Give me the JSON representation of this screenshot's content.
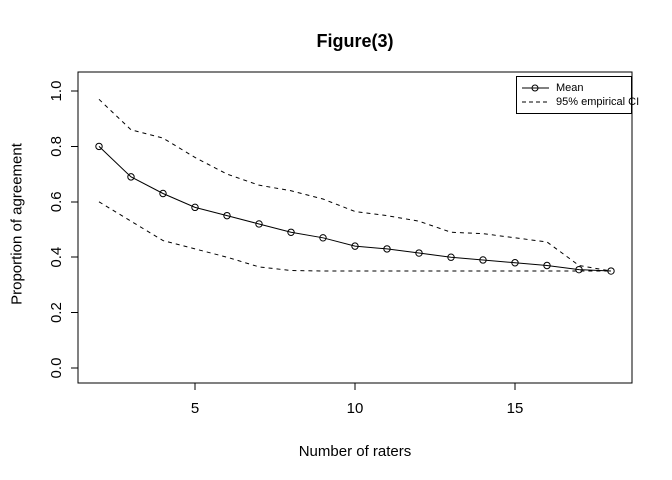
{
  "figure": {
    "title": "Figure(3)"
  },
  "chart_data": {
    "type": "line",
    "title": "Figure(3)",
    "xlabel": "Number of raters",
    "ylabel": "Proportion of agreement",
    "x": [
      2,
      3,
      4,
      5,
      6,
      7,
      8,
      9,
      10,
      11,
      12,
      13,
      14,
      15,
      16,
      17,
      18
    ],
    "series": [
      {
        "name": "Mean",
        "line": "solid",
        "marker": "open-circle",
        "values": [
          0.8,
          0.69,
          0.63,
          0.58,
          0.55,
          0.52,
          0.49,
          0.47,
          0.44,
          0.43,
          0.415,
          0.4,
          0.39,
          0.38,
          0.37,
          0.355,
          0.35
        ]
      },
      {
        "name": "95% empirical CI (upper)",
        "line": "dashed",
        "marker": "none",
        "values": [
          0.97,
          0.86,
          0.83,
          0.76,
          0.7,
          0.66,
          0.64,
          0.61,
          0.565,
          0.55,
          0.53,
          0.49,
          0.485,
          0.47,
          0.455,
          0.37,
          0.35
        ]
      },
      {
        "name": "95% empirical CI (lower)",
        "line": "dashed",
        "marker": "none",
        "values": [
          0.6,
          0.53,
          0.46,
          0.43,
          0.4,
          0.365,
          0.352,
          0.35,
          0.35,
          0.35,
          0.35,
          0.35,
          0.35,
          0.35,
          0.35,
          0.35,
          0.35
        ]
      }
    ],
    "xlim": [
      2,
      18
    ],
    "ylim": [
      0.0,
      1.0
    ],
    "xticks": [
      5,
      10,
      15
    ],
    "yticks": [
      0.0,
      0.2,
      0.4,
      0.6,
      0.8,
      1.0
    ],
    "ytick_labels": [
      "0.0",
      "0.2",
      "0.4",
      "0.6",
      "0.8",
      "1.0"
    ],
    "grid": "off",
    "legend": {
      "position": "top-right",
      "entries": [
        {
          "label": "Mean",
          "line": "solid",
          "marker": "open-circle"
        },
        {
          "label": "95% empirical CI",
          "line": "dashed",
          "marker": "none"
        }
      ]
    },
    "colors": {
      "line": "#000000",
      "background": "#ffffff"
    }
  }
}
